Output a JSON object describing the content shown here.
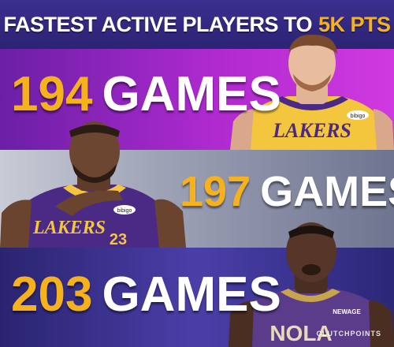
{
  "header": {
    "title_main": "FASTEST ACTIVE PLAYERS TO",
    "title_highlight": "5K PTS"
  },
  "rows": [
    {
      "number": "194",
      "unit": "GAMES"
    },
    {
      "number": "197",
      "unit": "GAMES"
    },
    {
      "number": "203",
      "unit": "GAMES"
    }
  ],
  "players": [
    {
      "jersey_text": "LAKERS",
      "sponsor": "bibigo"
    },
    {
      "jersey_text": "LAKERS",
      "sponsor": "bibigo",
      "jersey_number": "23"
    },
    {
      "jersey_text": "NOLA",
      "sponsor": "NEWAGE"
    }
  ],
  "watermark": "CLUTCHPOINTS",
  "colors": {
    "accent": "#f6b21c",
    "header_bg": "#2f2680",
    "band1": "#b02ad0",
    "band2": "#9ea3b6",
    "band3": "#3a3296",
    "lakers_gold": "#f4c63d",
    "lakers_purple": "#4b2a86",
    "pelicans_purple": "#5a3c8a"
  }
}
